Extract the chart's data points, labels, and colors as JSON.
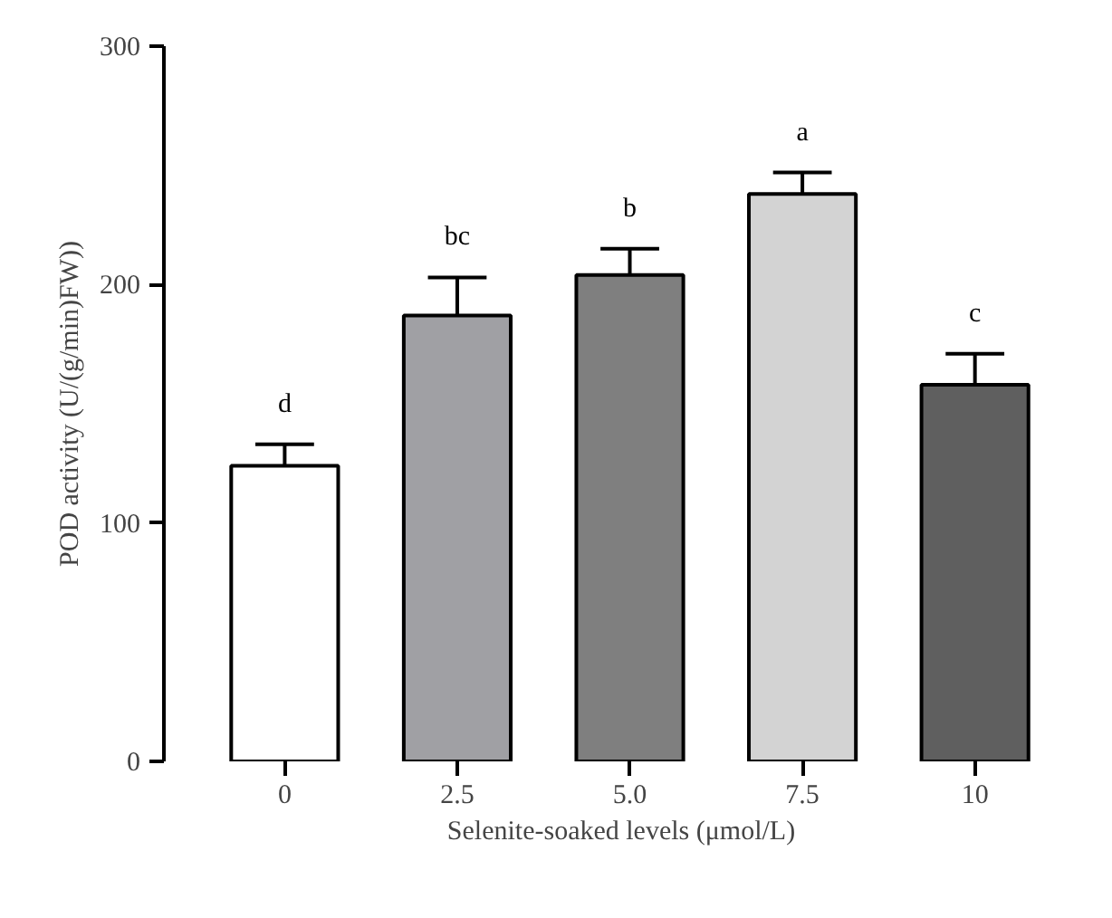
{
  "chart_data": {
    "type": "bar",
    "xlabel": "Selenite-soaked levels (μmol/L)",
    "ylabel": "POD activity (U/(g/min)FW))",
    "categories": [
      "0",
      "2.5",
      "5.0",
      "7.5",
      "10"
    ],
    "values": [
      124,
      187,
      204,
      238,
      158
    ],
    "colors": [
      "#ffffff",
      "#a0a0a4",
      "#7f7f7f",
      "#d3d3d3",
      "#5f5f5f"
    ],
    "errors": [
      [
        124,
        133
      ],
      [
        187,
        203
      ],
      [
        204,
        215
      ],
      [
        238,
        247
      ],
      [
        158,
        171
      ]
    ],
    "ylim": [
      0,
      300
    ],
    "yticks": [
      0,
      100,
      200,
      300
    ],
    "grid": false,
    "annotations": [
      {
        "text": "d",
        "x": "0",
        "y": 133
      },
      {
        "text": "bc",
        "x": "2.5",
        "y": 203
      },
      {
        "text": "b",
        "x": "5.0",
        "y": 215
      },
      {
        "text": "a",
        "x": "7.5",
        "y": 247
      },
      {
        "text": "c",
        "x": "10",
        "y": 171
      }
    ]
  }
}
